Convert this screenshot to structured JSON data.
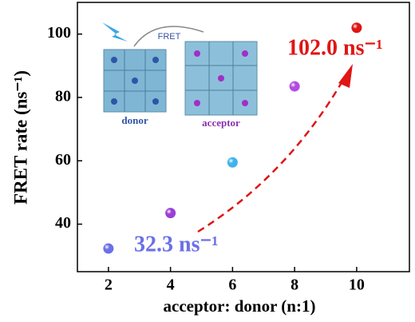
{
  "chart_data": {
    "type": "scatter",
    "xlabel": "acceptor: donor (n:1)",
    "ylabel": "FRET rate (ns⁻¹)",
    "series": [
      {
        "x": [
          2,
          4,
          6,
          8,
          10
        ],
        "values": [
          32.3,
          43.5,
          59.5,
          83.5,
          102.0
        ],
        "colors": [
          "#6b70e8",
          "#9b3fd6",
          "#3fb4ea",
          "#b24be0",
          "#e01515"
        ]
      }
    ],
    "xlim": [
      1,
      11.7
    ],
    "ylim": [
      25,
      110
    ],
    "xticks": [
      2,
      4,
      6,
      8,
      10
    ],
    "yticks": [
      40,
      60,
      80,
      100
    ],
    "annotations": [
      {
        "text": "102.0 ns⁻¹",
        "color": "#e01515"
      },
      {
        "text": "32.3 ns⁻¹",
        "color": "#6b70e8"
      }
    ],
    "inset": {
      "labels": [
        "FRET",
        "donor",
        "acceptor"
      ]
    }
  }
}
